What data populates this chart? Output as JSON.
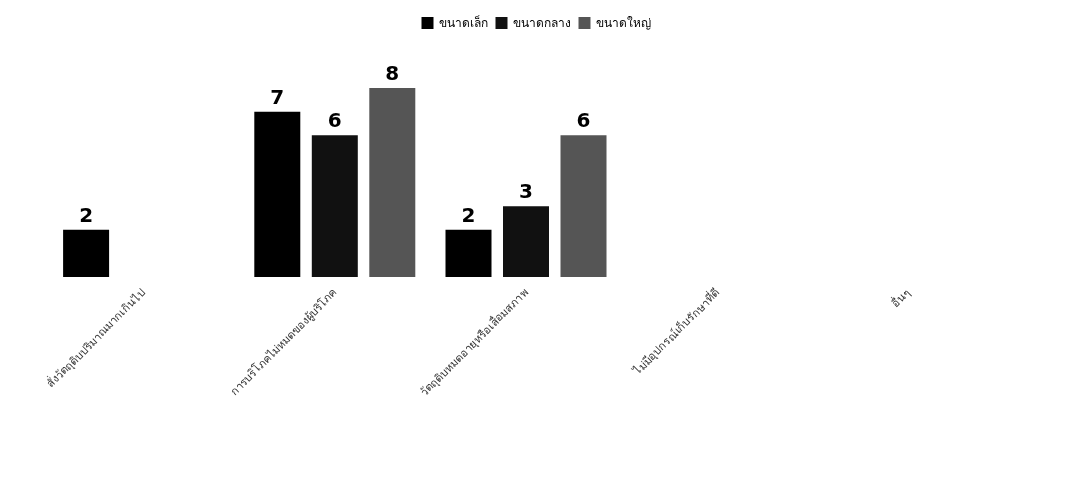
{
  "chart_data": {
    "type": "bar",
    "categories": [
      "สั่งวัตถุดิบปริมาณมากเกินไป",
      "การบริโภคไม่หมดของผู้บริโภค",
      "วัตถุดิบหมดอายุหรือเสื่อมสภาพ",
      "ไม่มีอุปกรณ์เก็บรักษาที่ดี",
      "อื่นๆ"
    ],
    "series": [
      {
        "name": "ขนาดเล็ก",
        "color": "#000000",
        "values": [
          2,
          7,
          2,
          null,
          null
        ]
      },
      {
        "name": "ขนาดกลาง",
        "color": "#111111",
        "values": [
          null,
          6,
          3,
          null,
          null
        ]
      },
      {
        "name": "ขนาดใหญ่",
        "color": "#555555",
        "values": [
          null,
          8,
          6,
          null,
          null
        ]
      }
    ],
    "data_labels": true,
    "legend": "top",
    "grid": false
  }
}
